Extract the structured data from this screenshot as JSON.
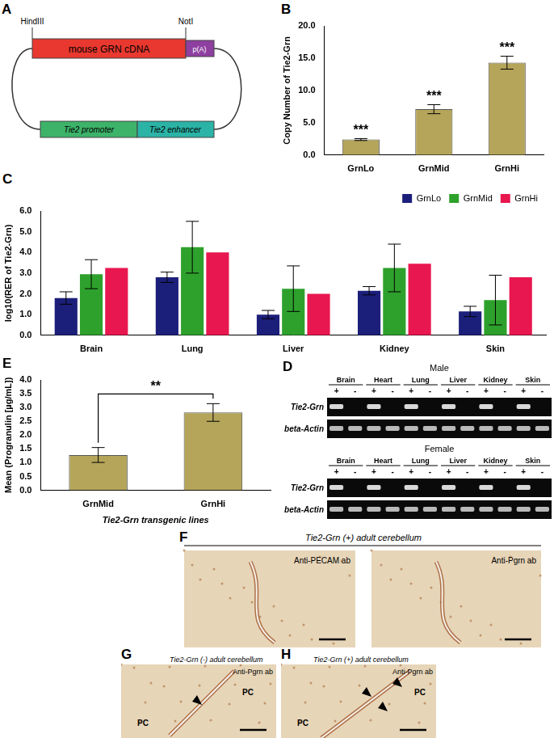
{
  "panels": {
    "A": {
      "panel": "A",
      "labels": {
        "site_left": "HindIII",
        "site_right": "NotI",
        "insert": "mouse GRN cDNA",
        "polya": "p(A)",
        "promoter": "Tie2 promoter",
        "enhancer": "Tie2 enhancer"
      }
    },
    "D": {
      "panel": "D",
      "groups": [
        "Male",
        "Female"
      ],
      "tissues": [
        "Brain",
        "Heart",
        "Lung",
        "Liver",
        "Kidney",
        "Skin"
      ],
      "lanes": [
        "+",
        "-"
      ],
      "rows": [
        "Tie2-Grn",
        "beta-Actin"
      ]
    },
    "F": {
      "panel": "F",
      "title": "Tie2-Grn (+) adult cerebellum",
      "images": [
        "Anti-PECAM ab",
        "Anti-Pgrn ab"
      ]
    },
    "G": {
      "panel": "G",
      "title": "Tie2-Grn (-) adult cerebellum",
      "image": "Anti-Pgrn ab",
      "regions": [
        "PC",
        "PC"
      ]
    },
    "H": {
      "panel": "H",
      "title": "Tie2-Grn (+) adult cerebellum",
      "image": "Anti-Pgrn ab",
      "regions": [
        "PC",
        "PC"
      ]
    }
  },
  "chart_data": [
    {
      "panel": "B",
      "type": "bar",
      "categories": [
        "GrnLo",
        "GrnMid",
        "GrnHi"
      ],
      "values": [
        2.4,
        7.1,
        14.3
      ],
      "errors": [
        0.15,
        0.7,
        1.0
      ],
      "color": "#b5a55a",
      "y_label": "Copy Number of Tie2-Grn",
      "ylim": [
        0,
        20
      ],
      "yticks": [
        {
          "value": 0,
          "label": "0.0"
        },
        {
          "value": 5,
          "label": "5.0"
        },
        {
          "value": 10,
          "label": "10.0"
        },
        {
          "value": 15,
          "label": "15.0"
        },
        {
          "value": 20,
          "label": "20.0"
        }
      ],
      "grid": false,
      "annotations": [
        {
          "text": "***",
          "categories": [
            "GrnLo"
          ]
        },
        {
          "text": "***",
          "categories": [
            "GrnMid"
          ]
        },
        {
          "text": "***",
          "categories": [
            "GrnHi"
          ]
        }
      ]
    },
    {
      "panel": "C",
      "type": "bar",
      "categories": [
        "Brain",
        "Lung",
        "Liver",
        "Kidney",
        "Skin"
      ],
      "series": [
        {
          "name": "GrnLo",
          "color": "#1c1f7a",
          "values": [
            1.8,
            2.8,
            1.0,
            2.15,
            1.15
          ],
          "errors": [
            0.3,
            0.25,
            0.2,
            0.2,
            0.25
          ]
        },
        {
          "name": "GrnMid",
          "color": "#2ea12c",
          "values": [
            2.95,
            4.25,
            2.25,
            3.25,
            1.7
          ],
          "errors": [
            0.7,
            1.25,
            1.1,
            1.15,
            1.2
          ]
        },
        {
          "name": "GrnHi",
          "color": "#e8174f",
          "values": [
            3.25,
            4.0,
            2.0,
            3.45,
            2.8
          ],
          "errors": [
            null,
            null,
            null,
            null,
            null
          ]
        }
      ],
      "y_label": "log10(RER of Tie2-Grn)",
      "ylim": [
        0,
        6
      ],
      "yticks": [
        {
          "value": 0,
          "label": "0.0"
        },
        {
          "value": 1,
          "label": "1.0"
        },
        {
          "value": 2,
          "label": "2.0"
        },
        {
          "value": 3,
          "label": "3.0"
        },
        {
          "value": 4,
          "label": "4.0"
        },
        {
          "value": 5,
          "label": "5.0"
        },
        {
          "value": 6,
          "label": "6.0"
        }
      ],
      "grid": false,
      "legend": "top right"
    },
    {
      "panel": "E",
      "type": "bar",
      "categories": [
        "GrnMid",
        "GrnHi"
      ],
      "values": [
        1.28,
        2.82
      ],
      "errors": [
        0.27,
        0.32
      ],
      "color": "#b5a55a",
      "x_label": "Tie2-Grn transgenic lines",
      "y_label": "Mean (Progranulin [µg/mL])",
      "ylim": [
        0,
        4
      ],
      "yticks": [
        {
          "value": 0,
          "label": "0.0"
        },
        {
          "value": 0.5,
          "label": "0.5"
        },
        {
          "value": 1,
          "label": "1.0"
        },
        {
          "value": 1.5,
          "label": "1.5"
        },
        {
          "value": 2,
          "label": "2.0"
        },
        {
          "value": 2.5,
          "label": "2.5"
        },
        {
          "value": 3,
          "label": "3.0"
        },
        {
          "value": 3.5,
          "label": "3.5"
        },
        {
          "value": 4,
          "label": "4.0"
        }
      ],
      "grid": false,
      "annotations": [
        {
          "text": "**",
          "categories": [
            "GrnMid",
            "GrnHi"
          ]
        }
      ]
    }
  ]
}
